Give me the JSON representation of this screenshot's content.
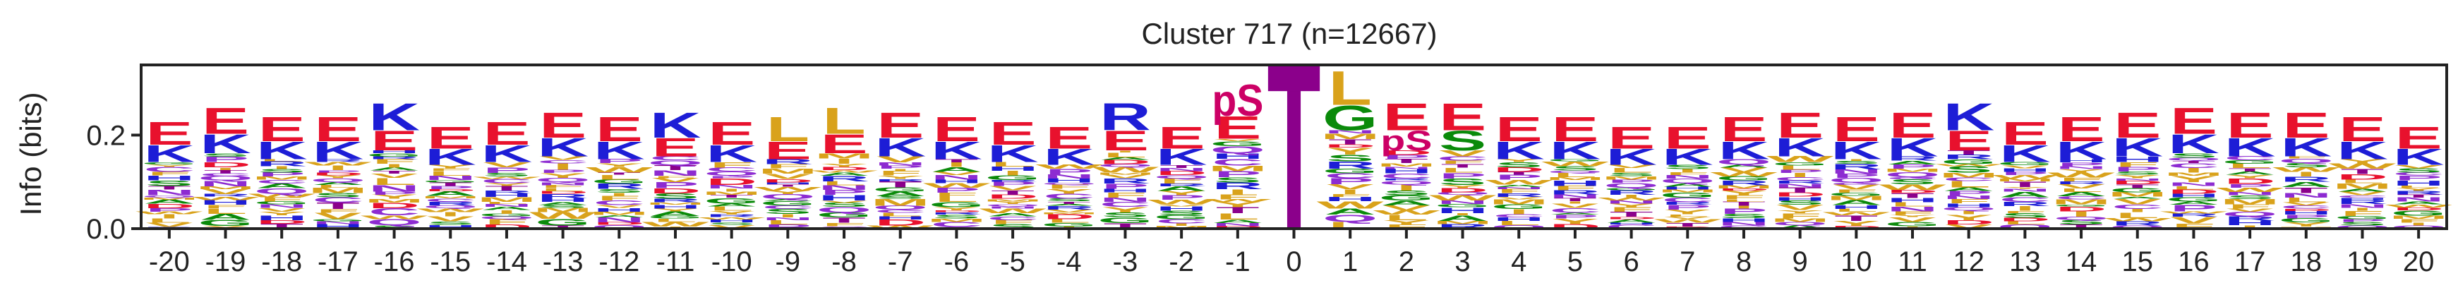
{
  "chart_data": {
    "type": "sequence-logo",
    "title": "Cluster 717 (n=12667)",
    "ylabel": "Info (bits)",
    "xlabel": "",
    "ylim": [
      0,
      0.35
    ],
    "yticks": [
      "0.0",
      "0.2"
    ],
    "ytick_values": [
      0.0,
      0.2
    ],
    "positions": [
      "-20",
      "-19",
      "-18",
      "-17",
      "-16",
      "-15",
      "-14",
      "-13",
      "-12",
      "-11",
      "-10",
      "-9",
      "-8",
      "-7",
      "-6",
      "-5",
      "-4",
      "-3",
      "-2",
      "-1",
      "0",
      "1",
      "2",
      "3",
      "4",
      "5",
      "6",
      "7",
      "8",
      "9",
      "10",
      "11",
      "12",
      "13",
      "14",
      "15",
      "16",
      "17",
      "18",
      "19",
      "20"
    ],
    "total_bits": [
      0.23,
      0.26,
      0.24,
      0.24,
      0.27,
      0.22,
      0.23,
      0.25,
      0.24,
      0.25,
      0.23,
      0.24,
      0.26,
      0.25,
      0.24,
      0.23,
      0.22,
      0.27,
      0.22,
      0.31,
      0.35,
      0.34,
      0.27,
      0.27,
      0.24,
      0.24,
      0.22,
      0.22,
      0.24,
      0.25,
      0.24,
      0.25,
      0.27,
      0.23,
      0.24,
      0.25,
      0.26,
      0.25,
      0.25,
      0.24,
      0.22
    ],
    "top_letters": [
      "E",
      "E",
      "E",
      "E",
      "K",
      "E",
      "E",
      "E",
      "E",
      "K",
      "E",
      "L",
      "L",
      "E",
      "E",
      "E",
      "E",
      "R",
      "E",
      "pS",
      "T",
      "L",
      "E",
      "E",
      "E",
      "E",
      "E",
      "E",
      "E",
      "E",
      "E",
      "E",
      "K",
      "E",
      "E",
      "E",
      "E",
      "E",
      "E",
      "E",
      "E"
    ],
    "second_letters": [
      "K",
      "K",
      "K",
      "K",
      "E",
      "K",
      "K",
      "K",
      "K",
      "E",
      "K",
      "E",
      "E",
      "K",
      "K",
      "K",
      "K",
      "E",
      "K",
      "E",
      "",
      "G",
      "pS",
      "S",
      "K",
      "K",
      "K",
      "K",
      "K",
      "K",
      "K",
      "K",
      "E",
      "K",
      "K",
      "K",
      "K",
      "K",
      "K",
      "K",
      "K"
    ],
    "fixed_position_letter": "T",
    "background_letters": [
      "L",
      "A",
      "S",
      "R",
      "D",
      "Q",
      "V",
      "G",
      "P",
      "T",
      "N",
      "I",
      "F",
      "H",
      "M",
      "Y",
      "W",
      "C"
    ],
    "colors": {
      "acidic": "#e8112d",
      "basic": "#1d1dd6",
      "hydrophobic": "#d9a21b",
      "polar": "#0a8a0a",
      "other": "#8d2bd1",
      "phospho": "#cc0066",
      "fixed": "#8b008b"
    },
    "letter_colors": {
      "E": "#e8112d",
      "D": "#e8112d",
      "K": "#1d1dd6",
      "R": "#1d1dd6",
      "H": "#1d1dd6",
      "L": "#d9a21b",
      "V": "#d9a21b",
      "I": "#d9a21b",
      "F": "#d9a21b",
      "M": "#d9a21b",
      "W": "#d9a21b",
      "Y": "#d9a21b",
      "A": "#0a8a0a",
      "G": "#0a8a0a",
      "S": "#0a8a0a",
      "T": "#8b008b",
      "Q": "#8d2bd1",
      "N": "#8d2bd1",
      "P": "#8d2bd1",
      "C": "#8d2bd1",
      "pS": "#cc0066"
    }
  }
}
